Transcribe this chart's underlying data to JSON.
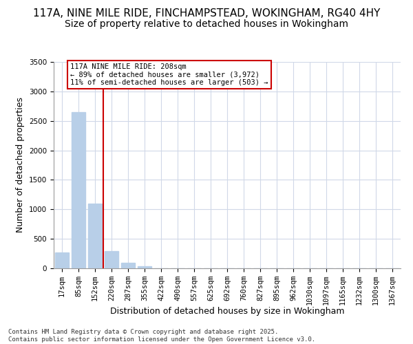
{
  "title": "117A, NINE MILE RIDE, FINCHAMPSTEAD, WOKINGHAM, RG40 4HY",
  "subtitle": "Size of property relative to detached houses in Wokingham",
  "xlabel": "Distribution of detached houses by size in Wokingham",
  "ylabel": "Number of detached properties",
  "categories": [
    "17sqm",
    "85sqm",
    "152sqm",
    "220sqm",
    "287sqm",
    "355sqm",
    "422sqm",
    "490sqm",
    "557sqm",
    "625sqm",
    "692sqm",
    "760sqm",
    "827sqm",
    "895sqm",
    "962sqm",
    "1030sqm",
    "1097sqm",
    "1165sqm",
    "1232sqm",
    "1300sqm",
    "1367sqm"
  ],
  "values": [
    270,
    2650,
    1100,
    290,
    95,
    35,
    0,
    0,
    0,
    0,
    0,
    0,
    0,
    0,
    0,
    0,
    0,
    0,
    0,
    0,
    0
  ],
  "bar_color": "#b8cfe8",
  "grid_color": "#d0d8e8",
  "background_color": "#ffffff",
  "vline_color": "#cc0000",
  "annotation_text": "117A NINE MILE RIDE: 208sqm\n← 89% of detached houses are smaller (3,972)\n11% of semi-detached houses are larger (503) →",
  "annotation_box_color": "#cc0000",
  "footnote": "Contains HM Land Registry data © Crown copyright and database right 2025.\nContains public sector information licensed under the Open Government Licence v3.0.",
  "ylim": [
    0,
    3500
  ],
  "yticks": [
    0,
    500,
    1000,
    1500,
    2000,
    2500,
    3000,
    3500
  ],
  "title_fontsize": 11,
  "subtitle_fontsize": 10,
  "axis_fontsize": 9,
  "tick_fontsize": 7.5,
  "footnote_fontsize": 6.5
}
